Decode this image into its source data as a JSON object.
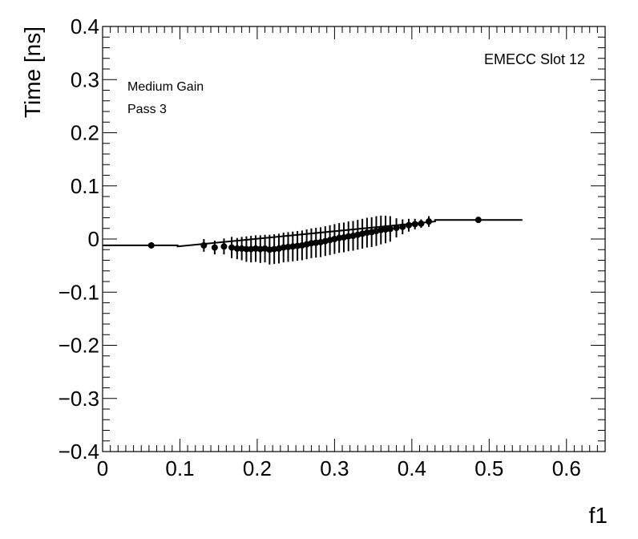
{
  "chart_data": {
    "type": "scatter",
    "title": "",
    "xlabel": "f1",
    "ylabel": "Time [ns]",
    "xlim": [
      0,
      0.65
    ],
    "ylim": [
      -0.4,
      0.4
    ],
    "x_ticks": [
      0,
      0.1,
      0.2,
      0.3,
      0.4,
      0.5,
      0.6
    ],
    "x_tick_labels": [
      "0",
      "0.1",
      "0.2",
      "0.3",
      "0.4",
      "0.5",
      "0.6"
    ],
    "y_ticks": [
      -0.4,
      -0.3,
      -0.2,
      -0.1,
      0,
      0.1,
      0.2,
      0.3,
      0.4
    ],
    "y_tick_labels": [
      "−0.4",
      "−0.3",
      "−0.2",
      "−0.1",
      "0",
      "0.1",
      "0.2",
      "0.3",
      "0.4"
    ],
    "annotations": [
      "Medium Gain",
      "Pass 3",
      "EMECC Slot 12"
    ],
    "series": [
      {
        "name": "data",
        "x": [
          0.063,
          0.131,
          0.145,
          0.157,
          0.167,
          0.174,
          0.18,
          0.186,
          0.192,
          0.198,
          0.204,
          0.21,
          0.216,
          0.222,
          0.228,
          0.234,
          0.24,
          0.246,
          0.252,
          0.258,
          0.264,
          0.27,
          0.276,
          0.282,
          0.288,
          0.294,
          0.3,
          0.306,
          0.312,
          0.318,
          0.324,
          0.33,
          0.336,
          0.342,
          0.348,
          0.354,
          0.36,
          0.366,
          0.372,
          0.38,
          0.388,
          0.396,
          0.404,
          0.412,
          0.422,
          0.486
        ],
        "y": [
          -0.012,
          -0.012,
          -0.016,
          -0.014,
          -0.016,
          -0.018,
          -0.018,
          -0.019,
          -0.019,
          -0.018,
          -0.019,
          -0.018,
          -0.02,
          -0.019,
          -0.018,
          -0.016,
          -0.015,
          -0.014,
          -0.013,
          -0.012,
          -0.01,
          -0.008,
          -0.007,
          -0.006,
          -0.004,
          -0.002,
          0.0,
          0.002,
          0.003,
          0.005,
          0.006,
          0.008,
          0.01,
          0.012,
          0.013,
          0.015,
          0.017,
          0.018,
          0.019,
          0.021,
          0.023,
          0.026,
          0.028,
          0.029,
          0.033,
          0.036
        ],
        "yerr": [
          0.005,
          0.012,
          0.013,
          0.015,
          0.02,
          0.02,
          0.022,
          0.024,
          0.025,
          0.025,
          0.026,
          0.026,
          0.028,
          0.028,
          0.028,
          0.028,
          0.028,
          0.028,
          0.028,
          0.028,
          0.028,
          0.028,
          0.028,
          0.028,
          0.028,
          0.028,
          0.028,
          0.028,
          0.028,
          0.028,
          0.028,
          0.028,
          0.028,
          0.028,
          0.028,
          0.028,
          0.027,
          0.026,
          0.024,
          0.018,
          0.014,
          0.012,
          0.01,
          0.008,
          0.01,
          0.005
        ]
      }
    ],
    "step_line": {
      "x": [
        0,
        0.097,
        0.097,
        0.43,
        0.43,
        0.543
      ],
      "y": [
        -0.012,
        -0.012,
        -0.014,
        0.033,
        0.036,
        0.036
      ]
    }
  }
}
